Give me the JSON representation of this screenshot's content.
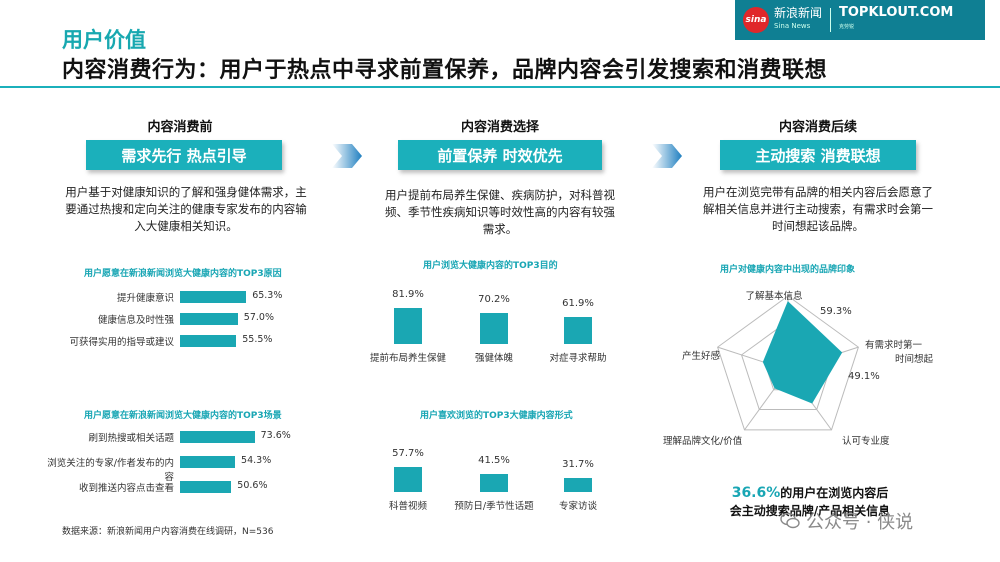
{
  "header": {
    "section_title": "用户价值",
    "main_title": "内容消费行为：用户于热点中寻求前置保养，品牌内容会引发搜索和消费联想",
    "brand": {
      "logo": "sina",
      "cn": "新浪新闻",
      "cn_sub": "Sina News",
      "en": "TOPKLOUT.COM",
      "en_sub": "克劳锐"
    }
  },
  "columns": [
    {
      "head": "内容消费前",
      "banner": "需求先行 热点引导",
      "desc": "用户基于对健康知识的了解和强身健体需求，主要通过热搜和定向关注的健康专家发布的内容输入大健康相关知识。"
    },
    {
      "head": "内容消费选择",
      "banner": "前置保养 时效优先",
      "desc": "用户提前布局养生保健、疾病防护，对科普视频、季节性疾病知识等时效性高的内容有较强需求。"
    },
    {
      "head": "内容消费后续",
      "banner": "主动搜索 消费联想",
      "desc": "用户在浏览完带有品牌的相关内容后会愿意了解相关信息并进行主动搜索，有需求时会第一时间想起该品牌。"
    }
  ],
  "arrow_icon": "chevron-right-icon",
  "accent_color": "#1aa7b3",
  "footer": {
    "source": "数据来源：新浪新闻用户内容消费在线调研，N=536",
    "highlight_pct": "36.6%",
    "highlight_line1": "的用户在浏览内容后",
    "highlight_line2": "会主动搜索品牌/产品相关信息",
    "watermark_icon": "wechat-icon",
    "watermark": "公众号 · 侠说"
  },
  "chart_data": [
    {
      "type": "bar",
      "orientation": "horizontal",
      "title": "用户愿意在新浪新闻浏览大健康内容的TOP3原因",
      "categories": [
        "提升健康意识",
        "健康信息及时性强",
        "可获得实用的指导或建议"
      ],
      "values": [
        65.3,
        57.0,
        55.5
      ],
      "labels": [
        "65.3%",
        "57.0%",
        "55.5%"
      ],
      "unit": "%"
    },
    {
      "type": "bar",
      "orientation": "horizontal",
      "title": "用户愿意在新浪新闻浏览大健康内容的TOP3场景",
      "categories": [
        "刷到热搜或相关话题",
        "浏览关注的专家/作者发布的内容",
        "收到推送内容点击查看"
      ],
      "values": [
        73.6,
        54.3,
        50.6
      ],
      "labels": [
        "73.6%",
        "54.3%",
        "50.6%"
      ],
      "unit": "%"
    },
    {
      "type": "bar",
      "orientation": "vertical",
      "title": "用户浏览大健康内容的TOP3目的",
      "categories": [
        "提前布局养生保健",
        "强健体魄",
        "对症寻求帮助"
      ],
      "values": [
        81.9,
        70.2,
        61.9
      ],
      "labels": [
        "81.9%",
        "70.2%",
        "61.9%"
      ],
      "unit": "%"
    },
    {
      "type": "bar",
      "orientation": "vertical",
      "title": "用户喜欢浏览的TOP3大健康内容形式",
      "categories": [
        "科普视频",
        "预防日/季节性话题",
        "专家访谈"
      ],
      "values": [
        57.7,
        41.5,
        31.7
      ],
      "labels": [
        "57.7%",
        "41.5%",
        "31.7%"
      ],
      "unit": "%"
    },
    {
      "type": "radar",
      "title": "用户对健康内容中出现的品牌印象",
      "axes": [
        "了解基本信息",
        "有需求时第一时间想起",
        "认可专业度",
        "理解品牌文化/价值",
        "产生好感"
      ],
      "values": [
        59.3,
        49.1,
        null,
        null,
        null
      ],
      "labels": [
        "59.3%",
        "49.1%",
        "",
        "",
        ""
      ],
      "unit": "%"
    }
  ]
}
